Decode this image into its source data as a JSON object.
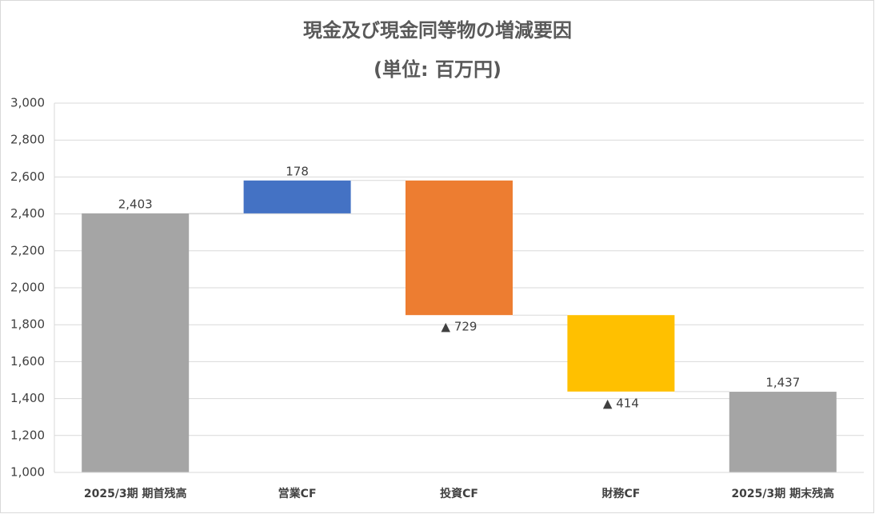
{
  "chart_data": {
    "type": "waterfall",
    "title": "現金及び現金同等物の増減要因",
    "subtitle": "(単位: 百万円)",
    "categories": [
      "2025/3期 期首残高",
      "営業CF",
      "投資CF",
      "財務CF",
      "2025/3期 期末残高"
    ],
    "values": [
      2403,
      178,
      -729,
      -414,
      1437
    ],
    "value_labels": [
      "2,403",
      "178",
      "▲ 729",
      "▲ 414",
      "1,437"
    ],
    "total": [
      true,
      false,
      false,
      false,
      true
    ],
    "colors": [
      "#a5a5a5",
      "#4472c4",
      "#ed7d31",
      "#ffc000",
      "#a5a5a5"
    ],
    "ylim": [
      1000,
      3000
    ],
    "yticks": [
      {
        "value": 1000,
        "label": "1,000"
      },
      {
        "value": 1200,
        "label": "1,200"
      },
      {
        "value": 1400,
        "label": "1,400"
      },
      {
        "value": 1600,
        "label": "1,600"
      },
      {
        "value": 1800,
        "label": "1,800"
      },
      {
        "value": 2000,
        "label": "2,000"
      },
      {
        "value": 2200,
        "label": "2,200"
      },
      {
        "value": 2400,
        "label": "2,400"
      },
      {
        "value": 2600,
        "label": "2,600"
      },
      {
        "value": 2800,
        "label": "2,800"
      },
      {
        "value": 3000,
        "label": "3,000"
      }
    ],
    "grid": true
  }
}
